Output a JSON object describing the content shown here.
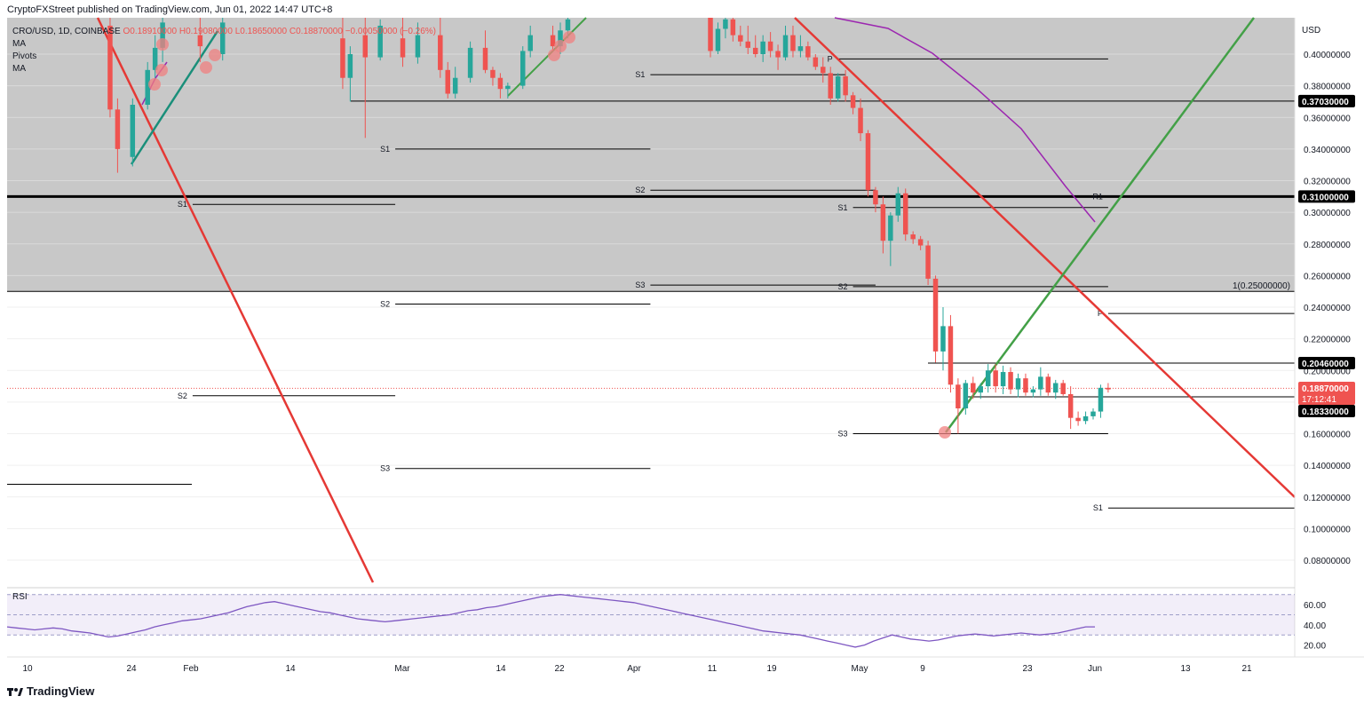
{
  "publisher_line": "CryptoFXStreet published on TradingView.com, Jun 01, 2022 14:47 UTC+8",
  "legend": {
    "symbol": "CRO/USD, 1D, COINBASE",
    "ohlc": "O0.18910000 H0.19080000 L0.18650000 C0.18870000 −0.00050000 (−0.26%)",
    "indicators": [
      "MA",
      "Pivots",
      "MA"
    ]
  },
  "footer": {
    "logo": "TradingView",
    "logo_icon": "tradingview-icon"
  },
  "colors": {
    "up": "#26a69a",
    "down": "#ef5350",
    "trend_red": "#e53935",
    "trend_green": "#43a047",
    "ma_purple": "#9c27b0",
    "zone": "#c8c8c8",
    "rsi": "#7e57c2"
  },
  "chart_data": {
    "type": "candlestick",
    "ylim": [
      0.06,
      0.42
    ],
    "y_axis_label": "USD",
    "y_ticks": [
      "0.08000000",
      "0.10000000",
      "0.12000000",
      "0.14000000",
      "0.16000000",
      "0.18000000",
      "0.20000000",
      "0.22000000",
      "0.24000000",
      "0.26000000",
      "0.28000000",
      "0.30000000",
      "0.32000000",
      "0.34000000",
      "0.36000000",
      "0.38000000",
      "0.40000000"
    ],
    "x_ticks": [
      "10",
      "24",
      "Feb",
      "14",
      "Mar",
      "14",
      "22",
      "Apr",
      "11",
      "19",
      "May",
      "9",
      "23",
      "Jun",
      "13",
      "21"
    ],
    "candles": [
      {
        "t": "Jan 21",
        "o": 0.418,
        "h": 0.424,
        "l": 0.36,
        "c": 0.365
      },
      {
        "t": "Jan 22",
        "o": 0.365,
        "h": 0.372,
        "l": 0.325,
        "c": 0.34
      },
      {
        "t": "Jan 24",
        "o": 0.335,
        "h": 0.372,
        "l": 0.329,
        "c": 0.368
      },
      {
        "t": "Jan 26",
        "o": 0.368,
        "h": 0.395,
        "l": 0.365,
        "c": 0.39
      },
      {
        "t": "Jan 27",
        "o": 0.39,
        "h": 0.412,
        "l": 0.385,
        "c": 0.404
      },
      {
        "t": "Jan 28",
        "o": 0.404,
        "h": 0.424,
        "l": 0.395,
        "c": 0.42
      },
      {
        "t": "Feb 02",
        "o": 0.412,
        "h": 0.424,
        "l": 0.395,
        "c": 0.405
      },
      {
        "t": "Feb 05",
        "o": 0.4,
        "h": 0.424,
        "l": 0.396,
        "c": 0.42
      },
      {
        "t": "Feb 21",
        "o": 0.41,
        "h": 0.424,
        "l": 0.378,
        "c": 0.385
      },
      {
        "t": "Feb 22",
        "o": 0.385,
        "h": 0.405,
        "l": 0.37,
        "c": 0.4
      },
      {
        "t": "Feb 24",
        "o": 0.412,
        "h": 0.424,
        "l": 0.347,
        "c": 0.398
      },
      {
        "t": "Feb 26",
        "o": 0.398,
        "h": 0.422,
        "l": 0.396,
        "c": 0.418
      },
      {
        "t": "Mar 01",
        "o": 0.41,
        "h": 0.424,
        "l": 0.392,
        "c": 0.398
      },
      {
        "t": "Mar 03",
        "o": 0.398,
        "h": 0.42,
        "l": 0.394,
        "c": 0.412
      },
      {
        "t": "Mar 06",
        "o": 0.412,
        "h": 0.424,
        "l": 0.385,
        "c": 0.39
      },
      {
        "t": "Mar 07",
        "o": 0.39,
        "h": 0.395,
        "l": 0.372,
        "c": 0.375
      },
      {
        "t": "Mar 08",
        "o": 0.375,
        "h": 0.392,
        "l": 0.372,
        "c": 0.385
      },
      {
        "t": "Mar 10",
        "o": 0.385,
        "h": 0.408,
        "l": 0.382,
        "c": 0.404
      },
      {
        "t": "Mar 12",
        "o": 0.404,
        "h": 0.415,
        "l": 0.388,
        "c": 0.39
      },
      {
        "t": "Mar 13",
        "o": 0.39,
        "h": 0.392,
        "l": 0.38,
        "c": 0.385
      },
      {
        "t": "Mar 14",
        "o": 0.385,
        "h": 0.388,
        "l": 0.372,
        "c": 0.378
      },
      {
        "t": "Mar 15",
        "o": 0.378,
        "h": 0.382,
        "l": 0.372,
        "c": 0.38
      },
      {
        "t": "Mar 17",
        "o": 0.38,
        "h": 0.405,
        "l": 0.378,
        "c": 0.402
      },
      {
        "t": "Mar 18",
        "o": 0.402,
        "h": 0.418,
        "l": 0.398,
        "c": 0.412
      },
      {
        "t": "Mar 21",
        "o": 0.412,
        "h": 0.418,
        "l": 0.402,
        "c": 0.405
      },
      {
        "t": "Mar 22",
        "o": 0.405,
        "h": 0.42,
        "l": 0.4,
        "c": 0.415
      },
      {
        "t": "Mar 23",
        "o": 0.415,
        "h": 0.424,
        "l": 0.41,
        "c": 0.422
      },
      {
        "t": "Apr 11",
        "o": 0.424,
        "h": 0.426,
        "l": 0.398,
        "c": 0.402
      },
      {
        "t": "Apr 12",
        "o": 0.402,
        "h": 0.42,
        "l": 0.4,
        "c": 0.416
      },
      {
        "t": "Apr 13",
        "o": 0.416,
        "h": 0.426,
        "l": 0.41,
        "c": 0.422
      },
      {
        "t": "Apr 14",
        "o": 0.422,
        "h": 0.426,
        "l": 0.408,
        "c": 0.412
      },
      {
        "t": "Apr 15",
        "o": 0.412,
        "h": 0.418,
        "l": 0.405,
        "c": 0.408
      },
      {
        "t": "Apr 16",
        "o": 0.408,
        "h": 0.418,
        "l": 0.4,
        "c": 0.404
      },
      {
        "t": "Apr 17",
        "o": 0.404,
        "h": 0.412,
        "l": 0.398,
        "c": 0.4
      },
      {
        "t": "Apr 18",
        "o": 0.4,
        "h": 0.412,
        "l": 0.395,
        "c": 0.408
      },
      {
        "t": "Apr 19",
        "o": 0.408,
        "h": 0.414,
        "l": 0.398,
        "c": 0.402
      },
      {
        "t": "Apr 20",
        "o": 0.402,
        "h": 0.406,
        "l": 0.39,
        "c": 0.398
      },
      {
        "t": "Apr 21",
        "o": 0.398,
        "h": 0.418,
        "l": 0.396,
        "c": 0.412
      },
      {
        "t": "Apr 22",
        "o": 0.412,
        "h": 0.418,
        "l": 0.398,
        "c": 0.402
      },
      {
        "t": "Apr 23",
        "o": 0.402,
        "h": 0.412,
        "l": 0.398,
        "c": 0.405
      },
      {
        "t": "Apr 24",
        "o": 0.405,
        "h": 0.408,
        "l": 0.396,
        "c": 0.398
      },
      {
        "t": "Apr 25",
        "o": 0.398,
        "h": 0.4,
        "l": 0.39,
        "c": 0.392
      },
      {
        "t": "Apr 26",
        "o": 0.392,
        "h": 0.398,
        "l": 0.382,
        "c": 0.388
      },
      {
        "t": "Apr 27",
        "o": 0.388,
        "h": 0.392,
        "l": 0.368,
        "c": 0.372
      },
      {
        "t": "Apr 28",
        "o": 0.372,
        "h": 0.388,
        "l": 0.37,
        "c": 0.386
      },
      {
        "t": "Apr 29",
        "o": 0.386,
        "h": 0.39,
        "l": 0.37,
        "c": 0.374
      },
      {
        "t": "Apr 30",
        "o": 0.374,
        "h": 0.376,
        "l": 0.362,
        "c": 0.366
      },
      {
        "t": "May 01",
        "o": 0.366,
        "h": 0.372,
        "l": 0.345,
        "c": 0.35
      },
      {
        "t": "May 02",
        "o": 0.35,
        "h": 0.352,
        "l": 0.31,
        "c": 0.314
      },
      {
        "t": "May 03",
        "o": 0.314,
        "h": 0.316,
        "l": 0.3,
        "c": 0.305
      },
      {
        "t": "May 04",
        "o": 0.305,
        "h": 0.31,
        "l": 0.274,
        "c": 0.282
      },
      {
        "t": "May 05",
        "o": 0.282,
        "h": 0.3,
        "l": 0.266,
        "c": 0.298
      },
      {
        "t": "May 06",
        "o": 0.298,
        "h": 0.316,
        "l": 0.294,
        "c": 0.312
      },
      {
        "t": "May 07",
        "o": 0.312,
        "h": 0.315,
        "l": 0.282,
        "c": 0.286
      },
      {
        "t": "May 08",
        "o": 0.286,
        "h": 0.288,
        "l": 0.28,
        "c": 0.283
      },
      {
        "t": "May 09",
        "o": 0.283,
        "h": 0.285,
        "l": 0.276,
        "c": 0.279
      },
      {
        "t": "May 10",
        "o": 0.279,
        "h": 0.282,
        "l": 0.254,
        "c": 0.258
      },
      {
        "t": "May 11",
        "o": 0.258,
        "h": 0.26,
        "l": 0.205,
        "c": 0.212
      },
      {
        "t": "May 12",
        "o": 0.212,
        "h": 0.24,
        "l": 0.2,
        "c": 0.228
      },
      {
        "t": "May 13",
        "o": 0.228,
        "h": 0.235,
        "l": 0.186,
        "c": 0.191
      },
      {
        "t": "May 14",
        "o": 0.191,
        "h": 0.195,
        "l": 0.16,
        "c": 0.176
      },
      {
        "t": "May 15",
        "o": 0.176,
        "h": 0.194,
        "l": 0.172,
        "c": 0.192
      },
      {
        "t": "May 16",
        "o": 0.192,
        "h": 0.196,
        "l": 0.182,
        "c": 0.186
      },
      {
        "t": "May 17",
        "o": 0.186,
        "h": 0.192,
        "l": 0.182,
        "c": 0.19
      },
      {
        "t": "May 18",
        "o": 0.19,
        "h": 0.204,
        "l": 0.186,
        "c": 0.2
      },
      {
        "t": "May 19",
        "o": 0.2,
        "h": 0.204,
        "l": 0.186,
        "c": 0.19
      },
      {
        "t": "May 20",
        "o": 0.19,
        "h": 0.203,
        "l": 0.185,
        "c": 0.199
      },
      {
        "t": "May 21",
        "o": 0.199,
        "h": 0.202,
        "l": 0.185,
        "c": 0.188
      },
      {
        "t": "May 22",
        "o": 0.188,
        "h": 0.198,
        "l": 0.183,
        "c": 0.195
      },
      {
        "t": "May 23",
        "o": 0.195,
        "h": 0.198,
        "l": 0.184,
        "c": 0.186
      },
      {
        "t": "May 24",
        "o": 0.186,
        "h": 0.19,
        "l": 0.183,
        "c": 0.188
      },
      {
        "t": "May 25",
        "o": 0.188,
        "h": 0.202,
        "l": 0.184,
        "c": 0.196
      },
      {
        "t": "May 26",
        "o": 0.196,
        "h": 0.198,
        "l": 0.184,
        "c": 0.186
      },
      {
        "t": "May 27",
        "o": 0.186,
        "h": 0.194,
        "l": 0.182,
        "c": 0.192
      },
      {
        "t": "May 28",
        "o": 0.192,
        "h": 0.194,
        "l": 0.184,
        "c": 0.185
      },
      {
        "t": "May 29",
        "o": 0.185,
        "h": 0.19,
        "l": 0.163,
        "c": 0.17
      },
      {
        "t": "May 30",
        "o": 0.17,
        "h": 0.174,
        "l": 0.165,
        "c": 0.168
      },
      {
        "t": "May 31",
        "o": 0.168,
        "h": 0.174,
        "l": 0.166,
        "c": 0.171
      },
      {
        "t": "Jun 01",
        "o": 0.171,
        "h": 0.176,
        "l": 0.169,
        "c": 0.174
      },
      {
        "t": "Jun 02",
        "o": 0.174,
        "h": 0.191,
        "l": 0.17,
        "c": 0.189
      },
      {
        "t": "Jun 03",
        "o": 0.189,
        "h": 0.192,
        "l": 0.186,
        "c": 0.188
      }
    ],
    "price_labels": [
      {
        "value": 0.3703,
        "text": "0.37030000",
        "style": "black"
      },
      {
        "value": 0.31,
        "text": "0.31000000",
        "style": "black"
      },
      {
        "value": 0.2046,
        "text": "0.20460000",
        "style": "black"
      },
      {
        "value": 0.1887,
        "text": "0.18870000",
        "sub": "17:12:41",
        "style": "red"
      },
      {
        "value": 0.1833,
        "text": "0.18330000",
        "style": "black"
      }
    ],
    "horizontal_levels": [
      {
        "value": 0.31,
        "label": "",
        "bold": true
      },
      {
        "value": 0.25,
        "label": "1(0.25000000)"
      }
    ],
    "zone": {
      "from": 0.25,
      "to": 0.42
    },
    "pivots": [
      {
        "label": "P",
        "value": 0.397,
        "from": "Apr 28",
        "to": "Jun 03"
      },
      {
        "label": "S1",
        "value": 0.387,
        "from": "Apr 03",
        "to": "Apr 29"
      },
      {
        "label": "S2",
        "value": 0.314,
        "from": "Apr 03",
        "to": "May 03"
      },
      {
        "label": "S3",
        "value": 0.254,
        "from": "Apr 03",
        "to": "May 03"
      },
      {
        "label": "R1",
        "value": 0.31,
        "from": "Jun 03",
        "to": "Jun 03"
      },
      {
        "label": "S1",
        "value": 0.303,
        "from": "Apr 30",
        "to": "Jun 03"
      },
      {
        "label": "S2",
        "value": 0.253,
        "from": "Apr 30",
        "to": "Jun 03"
      },
      {
        "label": "S3",
        "value": 0.16,
        "from": "Apr 30",
        "to": "Jun 03"
      },
      {
        "label": "P",
        "value": 0.236,
        "from": "Jun 03",
        "to": "Jul 01"
      },
      {
        "label": "S1",
        "value": 0.113,
        "from": "Jun 03",
        "to": "Jul 01"
      },
      {
        "label": "S1",
        "value": 0.34,
        "from": "Feb 28",
        "to": "Apr 03"
      },
      {
        "label": "S2",
        "value": 0.242,
        "from": "Feb 28",
        "to": "Apr 03"
      },
      {
        "label": "S3",
        "value": 0.138,
        "from": "Feb 28",
        "to": "Apr 03"
      },
      {
        "label": "S1",
        "value": 0.305,
        "from": "Feb 01",
        "to": "Feb 28"
      },
      {
        "label": "S2",
        "value": 0.184,
        "from": "Feb 01",
        "to": "Feb 28"
      }
    ],
    "rsi": {
      "label": "RSI",
      "ticks": [
        "60.00",
        "40.00",
        "20.00"
      ],
      "bands": [
        70,
        50,
        30
      ],
      "values": [
        38,
        37,
        36,
        35,
        36,
        37,
        36,
        34,
        33,
        32,
        30,
        28,
        29,
        31,
        33,
        35,
        38,
        40,
        42,
        44,
        45,
        46,
        48,
        50,
        52,
        55,
        58,
        60,
        62,
        63,
        61,
        59,
        57,
        55,
        53,
        52,
        50,
        48,
        46,
        45,
        44,
        43,
        44,
        45,
        46,
        47,
        48,
        49,
        50,
        52,
        54,
        55,
        57,
        58,
        60,
        62,
        64,
        66,
        68,
        69,
        70,
        69,
        68,
        67,
        66,
        65,
        64,
        63,
        62,
        60,
        58,
        56,
        54,
        52,
        50,
        48,
        46,
        44,
        42,
        40,
        38,
        36,
        34,
        33,
        32,
        31,
        30,
        28,
        26,
        24,
        22,
        20,
        18,
        20,
        24,
        27,
        30,
        28,
        26,
        25,
        24,
        25,
        27,
        29,
        30,
        31,
        30,
        29,
        30,
        31,
        32,
        31,
        30,
        31,
        32,
        34,
        36,
        38,
        38
      ]
    }
  }
}
